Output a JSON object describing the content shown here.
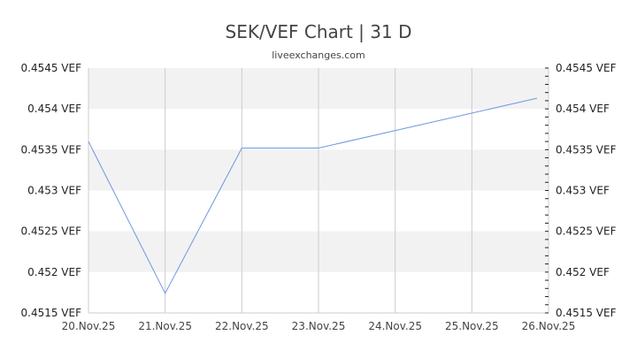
{
  "header": {
    "title": "SEK/VEF Chart | 31 D",
    "subtitle": "liveexchanges.com"
  },
  "colors": {
    "line": "#6f96e0",
    "band": "#f2f2f2",
    "grid": "#cccccc",
    "axis": "#cccccc"
  },
  "chart_data": {
    "type": "line",
    "title": "SEK/VEF Chart | 31 D",
    "subtitle": "liveexchanges.com",
    "xlabel": "",
    "ylabel": "VEF",
    "categories": [
      "20.Nov.25",
      "21.Nov.25",
      "22.Nov.25",
      "23.Nov.25",
      "24.Nov.25",
      "25.Nov.25",
      "26.Nov.25"
    ],
    "series": [
      {
        "name": "SEK/VEF",
        "points": [
          {
            "x": 0,
            "y": 0.4536
          },
          {
            "x": 1,
            "y": 0.45174
          },
          {
            "x": 2,
            "y": 0.45352
          },
          {
            "x": 3,
            "y": 0.45352
          },
          {
            "x": 5.85,
            "y": 0.45413
          }
        ]
      }
    ],
    "ylim": [
      0.4515,
      0.4545
    ],
    "yticks": [
      0.4515,
      0.452,
      0.4525,
      0.453,
      0.4535,
      0.454,
      0.4545
    ],
    "ytick_labels": [
      "0.4515 VEF",
      "0.452 VEF",
      "0.4525 VEF",
      "0.453 VEF",
      "0.4535 VEF",
      "0.454 VEF",
      "0.4545 VEF"
    ],
    "grid": true,
    "legend": "none"
  }
}
